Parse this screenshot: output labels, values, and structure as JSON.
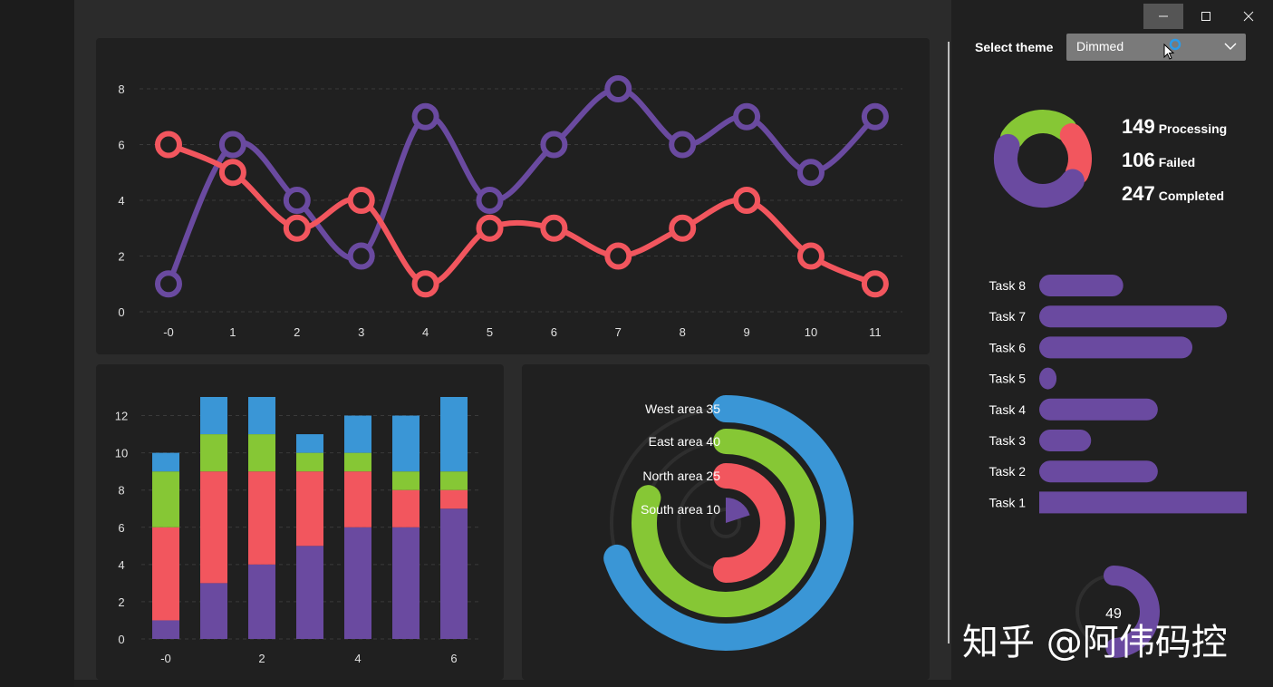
{
  "theme": {
    "label": "Select theme",
    "selected": "Dimmed"
  },
  "colors": {
    "purple": "#6a4aa0",
    "red": "#f2565e",
    "green": "#86c735",
    "blue": "#3a96d6"
  },
  "stats": [
    {
      "value": "149",
      "label": "Processing"
    },
    {
      "value": "106",
      "label": "Failed"
    },
    {
      "value": "247",
      "label": "Completed"
    }
  ],
  "watermark": "知乎 @阿伟码控",
  "gauge_value": "49",
  "line_chart": {
    "type": "line",
    "x": [
      "-0",
      "1",
      "2",
      "3",
      "4",
      "5",
      "6",
      "7",
      "8",
      "9",
      "10",
      "11"
    ],
    "yticks": [
      "0",
      "2",
      "4",
      "6",
      "8"
    ],
    "ylim": [
      0,
      8
    ],
    "series": [
      {
        "values": [
          1,
          6,
          4,
          2,
          7,
          4,
          6,
          8,
          6,
          7,
          5,
          7
        ]
      },
      {
        "values": [
          6,
          5,
          3,
          4,
          1,
          3,
          3,
          2,
          3,
          4,
          2,
          1
        ]
      }
    ]
  },
  "bar_chart": {
    "type": "bar",
    "xticks": [
      "-0",
      "2",
      "4",
      "6"
    ],
    "yticks": [
      "0",
      "2",
      "4",
      "6",
      "8",
      "10",
      "12"
    ],
    "ylim": [
      0,
      13
    ],
    "stacks": [
      [
        1,
        5,
        3,
        1
      ],
      [
        3,
        6,
        2,
        2
      ],
      [
        4,
        5,
        2,
        2
      ],
      [
        5,
        4,
        1,
        1
      ],
      [
        6,
        3,
        1,
        2
      ],
      [
        6,
        2,
        1,
        3
      ],
      [
        7,
        1,
        1,
        4
      ]
    ]
  },
  "radial_chart": {
    "type": "radial",
    "max": 50,
    "areas": [
      {
        "label": "West area 35",
        "value": 35
      },
      {
        "label": "East area 40",
        "value": 40
      },
      {
        "label": "North area 25",
        "value": 25
      },
      {
        "label": "South area 10",
        "value": 10
      }
    ]
  },
  "donut": {
    "values": [
      149,
      106,
      247
    ]
  },
  "tasks": [
    {
      "label": "Task 8",
      "value": 3.4
    },
    {
      "label": "Task 7",
      "value": 7.6
    },
    {
      "label": "Task 6",
      "value": 6.2
    },
    {
      "label": "Task 5",
      "value": 0.7
    },
    {
      "label": "Task 4",
      "value": 4.8
    },
    {
      "label": "Task 3",
      "value": 2.1
    },
    {
      "label": "Task 2",
      "value": 4.8
    },
    {
      "label": "Task 1",
      "value": 8.4
    }
  ]
}
